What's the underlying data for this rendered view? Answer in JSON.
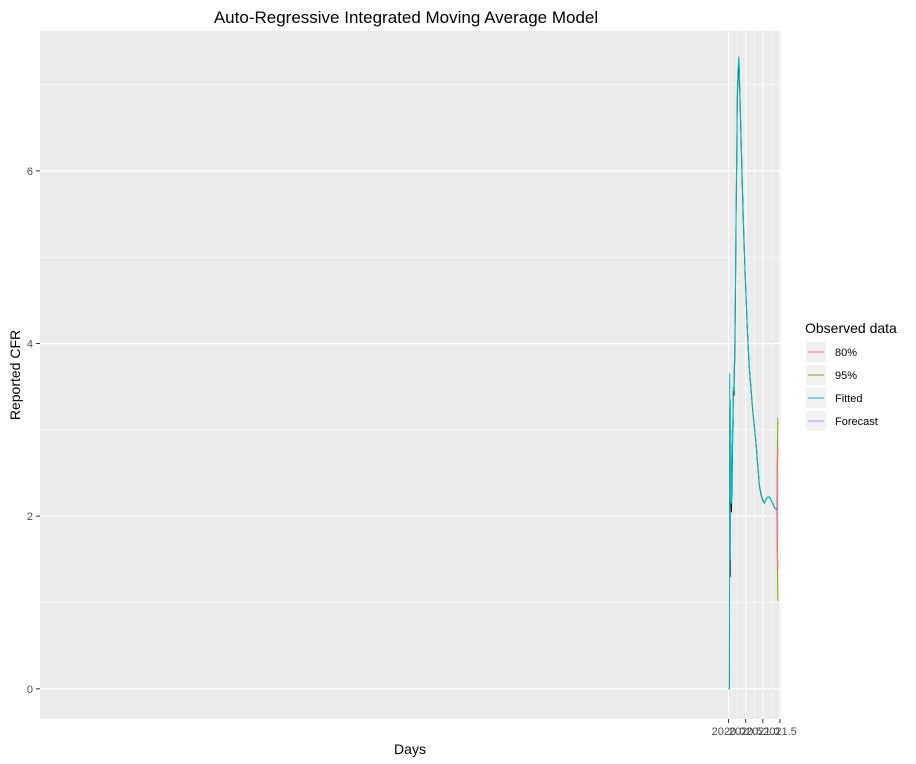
{
  "chart_data": {
    "type": "line",
    "title": "Auto-Regressive Integrated Moving Average Model",
    "xlabel": "Days",
    "ylabel": "Reported CFR",
    "xlim": [
      1999.93,
      2021.53
    ],
    "ylim": [
      -0.35,
      7.62
    ],
    "x_ticks": [
      2020.0,
      2020.5,
      2021.0,
      2021.5
    ],
    "x_tick_labels": [
      "2020.0",
      "2020.5",
      "2021.0",
      "2021.5"
    ],
    "y_ticks": [
      0,
      2,
      4,
      6
    ],
    "y_tick_labels": [
      "0",
      "2",
      "4",
      "6"
    ],
    "grid": true,
    "legend": {
      "title": "Observed data",
      "placement": "right",
      "entries": [
        {
          "label": "80%",
          "color": "#F8766D"
        },
        {
          "label": "95%",
          "color": "#7CAE00"
        },
        {
          "label": "Fitted",
          "color": "#00BFC4"
        },
        {
          "label": "Forecast",
          "color": "#C77CFF"
        }
      ]
    },
    "colors": {
      "observed": "#000000",
      "fitted": "#00BFC4",
      "band80_line": "#F8766D",
      "band95_line": "#7CAE00",
      "forecast_line": "#C77CFF",
      "forecast_fill": "#8080FF",
      "panel": "#EBEBEB",
      "grid": "#FFFFFF"
    },
    "series": [
      {
        "name": "Observed",
        "x": [
          2020.0,
          2020.025,
          2020.028,
          2020.032,
          2020.036,
          2020.04,
          2020.043,
          2020.047,
          2020.051,
          2020.055,
          2020.058,
          2020.062,
          2020.066,
          2020.07,
          2020.074,
          2020.078,
          2020.085,
          2020.092,
          2020.1,
          2020.107,
          2020.115,
          2020.122,
          2020.13,
          2020.14,
          2020.15,
          2020.16,
          2020.17,
          2020.18,
          2020.2,
          2020.22,
          2020.24,
          2020.25,
          2020.26,
          2020.27,
          2020.28,
          2020.29,
          2020.3,
          2020.31,
          2020.32,
          2020.33,
          2020.34,
          2020.36,
          2020.4,
          2020.45,
          2020.5,
          2020.55,
          2020.6,
          2020.65,
          2020.7,
          2020.75,
          2020.8,
          2020.85,
          2020.9,
          2020.95,
          2021.0,
          2021.05,
          2021.1,
          2021.15,
          2021.2,
          2021.25,
          2021.3,
          2021.35,
          2021.41
        ],
        "y": [
          0.0,
          0.0,
          1.0,
          1.7,
          3.25,
          2.2,
          3.0,
          1.3,
          2.9,
          3.0,
          2.6,
          2.6,
          2.85,
          2.1,
          2.15,
          2.1,
          2.05,
          2.2,
          2.3,
          2.5,
          2.7,
          3.0,
          3.1,
          3.45,
          3.42,
          3.4,
          3.7,
          3.8,
          4.45,
          5.45,
          6.1,
          6.6,
          6.9,
          7.0,
          7.1,
          7.2,
          7.25,
          7.2,
          7.05,
          6.9,
          6.75,
          6.45,
          5.85,
          5.2,
          4.65,
          4.15,
          3.75,
          3.5,
          3.25,
          3.05,
          2.85,
          2.6,
          2.35,
          2.25,
          2.18,
          2.15,
          2.2,
          2.22,
          2.22,
          2.18,
          2.14,
          2.09,
          2.08
        ]
      },
      {
        "name": "Fitted",
        "x": [
          2020.0,
          2020.025,
          2020.028,
          2020.032,
          2020.036,
          2020.04,
          2020.043,
          2020.047,
          2020.051,
          2020.055,
          2020.058,
          2020.062,
          2020.066,
          2020.07,
          2020.074,
          2020.078,
          2020.085,
          2020.092,
          2020.1,
          2020.107,
          2020.115,
          2020.122,
          2020.13,
          2020.14,
          2020.15,
          2020.16,
          2020.17,
          2020.18,
          2020.2,
          2020.22,
          2020.24,
          2020.25,
          2020.26,
          2020.27,
          2020.28,
          2020.29,
          2020.3,
          2020.31,
          2020.32,
          2020.33,
          2020.34,
          2020.36,
          2020.4,
          2020.45,
          2020.5,
          2020.55,
          2020.6,
          2020.65,
          2020.7,
          2020.75,
          2020.8,
          2020.85,
          2020.9,
          2020.95,
          2021.0,
          2021.05,
          2021.1,
          2021.15,
          2021.2,
          2021.25,
          2021.3,
          2021.35,
          2021.41
        ],
        "y": [
          0.0,
          0.0,
          1.1,
          1.85,
          3.65,
          2.4,
          3.2,
          1.5,
          3.05,
          3.35,
          2.75,
          2.8,
          3.0,
          2.25,
          2.3,
          2.2,
          2.15,
          2.3,
          2.45,
          2.6,
          2.85,
          3.1,
          3.2,
          3.5,
          3.45,
          3.48,
          3.75,
          3.9,
          4.55,
          5.55,
          6.2,
          6.7,
          7.0,
          7.1,
          7.2,
          7.3,
          7.32,
          7.25,
          7.1,
          6.95,
          6.8,
          6.5,
          5.9,
          5.22,
          4.67,
          4.16,
          3.76,
          3.51,
          3.26,
          3.06,
          2.86,
          2.61,
          2.36,
          2.26,
          2.19,
          2.15,
          2.2,
          2.22,
          2.22,
          2.18,
          2.14,
          2.09,
          2.08
        ]
      },
      {
        "name": "Forecast",
        "x": [
          2021.41,
          2021.44
        ],
        "y": [
          2.08,
          2.08
        ]
      }
    ],
    "forecast_band": {
      "x": [
        2021.41,
        2021.415,
        2021.42,
        2021.425,
        2021.43,
        2021.435,
        2021.44
      ],
      "lower80": [
        2.08,
        1.85,
        1.72,
        1.6,
        1.5,
        1.42,
        1.38
      ],
      "upper80": [
        2.08,
        2.3,
        2.45,
        2.57,
        2.66,
        2.73,
        2.78
      ],
      "lower95": [
        2.08,
        1.75,
        1.55,
        1.4,
        1.25,
        1.12,
        1.02
      ],
      "upper95": [
        2.08,
        2.45,
        2.65,
        2.8,
        2.93,
        3.05,
        3.14
      ]
    }
  }
}
